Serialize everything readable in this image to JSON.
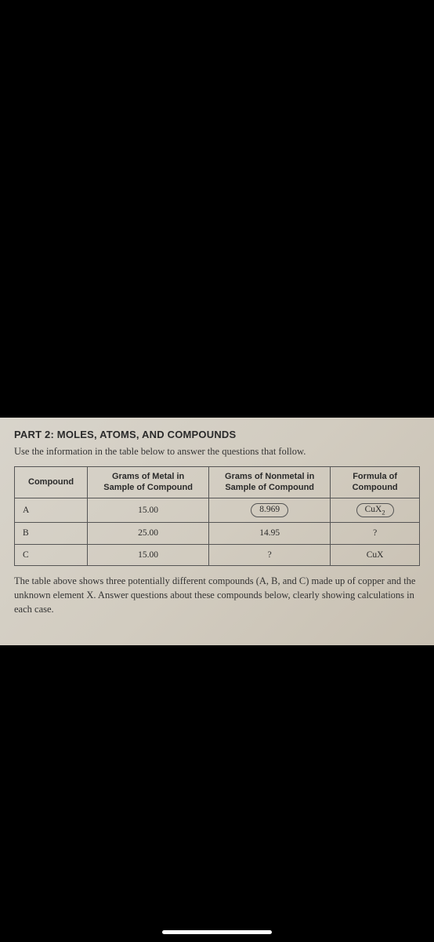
{
  "part_title": "PART 2: MOLES, ATOMS, AND COMPOUNDS",
  "intro": "Use the information in the table below to answer the questions that follow.",
  "table": {
    "columns": [
      {
        "line1": "Compound",
        "line2": ""
      },
      {
        "line1": "Grams of Metal in",
        "line2": "Sample of Compound"
      },
      {
        "line1": "Grams of Nonmetal in",
        "line2": "Sample of Compound"
      },
      {
        "line1": "Formula of",
        "line2": "Compound"
      }
    ],
    "rows": [
      {
        "compound": "A",
        "metal": "15.00",
        "nonmetal": "8.969",
        "nonmetal_circled": true,
        "formula_html": "CuX<span class=\"sub\">2</span>",
        "formula_circled": true
      },
      {
        "compound": "B",
        "metal": "25.00",
        "nonmetal": "14.95",
        "nonmetal_circled": false,
        "formula_html": "?",
        "formula_circled": false
      },
      {
        "compound": "C",
        "metal": "15.00",
        "nonmetal": "?",
        "nonmetal_circled": false,
        "formula_html": "CuX",
        "formula_circled": false
      }
    ],
    "column_widths_pct": [
      18,
      30,
      30,
      22
    ],
    "border_color": "#555555",
    "header_font_family": "Arial",
    "header_font_size_pt": 8,
    "cell_font_size_pt": 9
  },
  "outro": "The table above shows three potentially different compounds (A, B, and C) made up of copper and the unknown element X. Answer questions about these compounds below, clearly showing calculations in each case.",
  "colors": {
    "page_bg_start": "#d8d4cb",
    "page_bg_end": "#c8c0b2",
    "text": "#2a2a2a",
    "screen_bg": "#000000",
    "home_indicator": "#ffffff"
  }
}
